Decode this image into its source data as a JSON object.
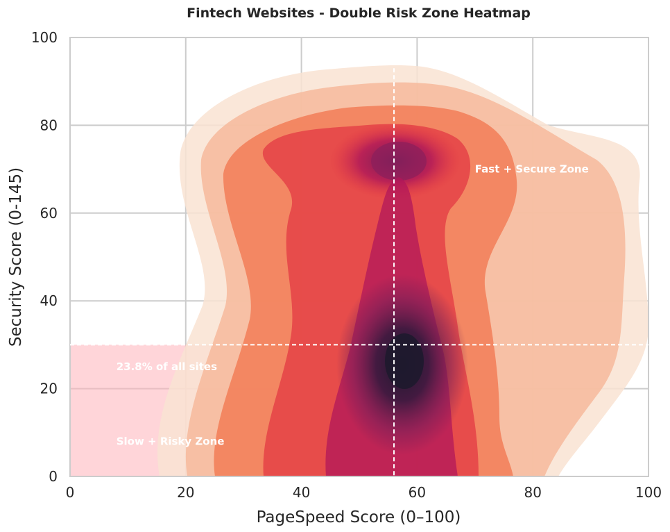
{
  "chart_data": {
    "type": "heatmap",
    "title": "Fintech Websites - Double Risk Zone Heatmap",
    "xlabel": "PageSpeed Score (0–100)",
    "ylabel": "Security Score (0-145)",
    "xlim": [
      0,
      100
    ],
    "ylim": [
      0,
      100
    ],
    "xticks": [
      0,
      20,
      40,
      60,
      80,
      100
    ],
    "yticks": [
      0,
      20,
      40,
      60,
      80,
      100
    ],
    "grid": true,
    "colormap": "rocket_r",
    "density_peaks": [
      {
        "x": 57,
        "y": 26,
        "weight": 1.0
      },
      {
        "x": 57,
        "y": 71,
        "weight": 0.72
      },
      {
        "x": 45,
        "y": 12,
        "weight": 0.55
      }
    ],
    "thresholds": {
      "pagespeed": 56,
      "security": 30,
      "line_color": "#ffffff",
      "line_style": "dashed"
    },
    "risk_zone": {
      "x_range": [
        0,
        56
      ],
      "y_range": [
        0,
        30
      ],
      "color": "#ffb3ba",
      "label": "Slow + Risky Zone",
      "share_label": "23.8% of all sites"
    },
    "annotations": [
      {
        "text": "Fast + Secure Zone",
        "x": 70,
        "y": 70
      },
      {
        "text": "23.8% of all sites",
        "x": 8,
        "y": 25
      },
      {
        "text": "Slow + Risky Zone",
        "x": 8,
        "y": 8
      }
    ]
  }
}
